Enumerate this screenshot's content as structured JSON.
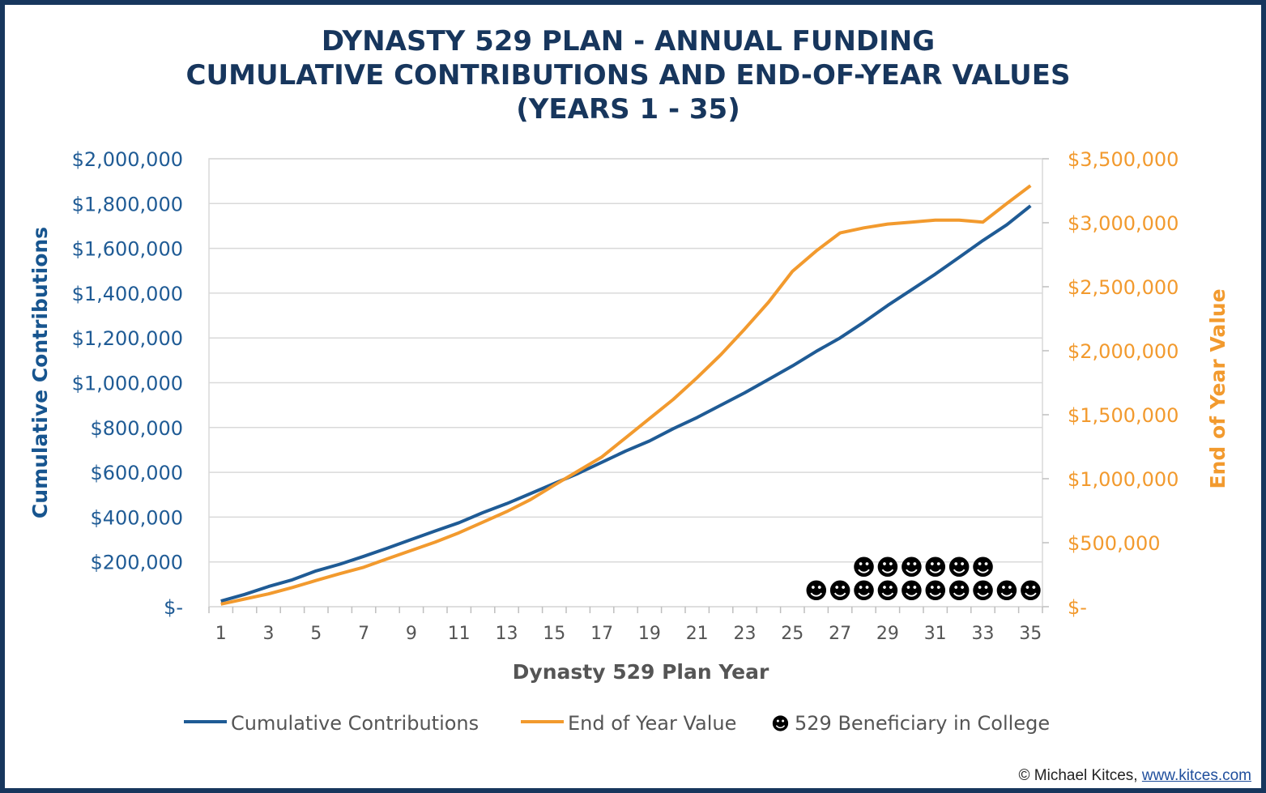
{
  "chart_data": {
    "type": "line",
    "title_lines": [
      "DYNASTY 529 PLAN - ANNUAL FUNDING",
      "CUMULATIVE CONTRIBUTIONS AND END-OF-YEAR VALUES",
      "(YEARS 1 - 35)"
    ],
    "xlabel": "Dynasty 529 Plan Year",
    "ylabel_left": "Cumulative Contributions",
    "ylabel_right": "End of Year Value",
    "x": [
      1,
      2,
      3,
      4,
      5,
      6,
      7,
      8,
      9,
      10,
      11,
      12,
      13,
      14,
      15,
      16,
      17,
      18,
      19,
      20,
      21,
      22,
      23,
      24,
      25,
      26,
      27,
      28,
      29,
      30,
      31,
      32,
      33,
      34,
      35
    ],
    "x_tick_labels": [
      "1",
      "3",
      "5",
      "7",
      "9",
      "11",
      "13",
      "15",
      "17",
      "19",
      "21",
      "23",
      "25",
      "27",
      "29",
      "31",
      "33",
      "35"
    ],
    "y_left_ticks": [
      "$-",
      "$200,000",
      "$400,000",
      "$600,000",
      "$800,000",
      "$1,000,000",
      "$1,200,000",
      "$1,400,000",
      "$1,600,000",
      "$1,800,000",
      "$2,000,000"
    ],
    "y_right_ticks": [
      "$-",
      "$500,000",
      "$1,000,000",
      "$1,500,000",
      "$2,000,000",
      "$2,500,000",
      "$3,000,000",
      "$3,500,000"
    ],
    "ylim_left": [
      0,
      2000000
    ],
    "ylim_right": [
      0,
      3500000
    ],
    "grid": true,
    "legend_position": "bottom",
    "series": [
      {
        "name": "Cumulative Contributions",
        "axis": "left",
        "color": "#1f5b95",
        "values": [
          25000,
          55000,
          90000,
          120000,
          160000,
          190000,
          225000,
          262000,
          300000,
          338000,
          375000,
          420000,
          460000,
          505000,
          550000,
          595000,
          645000,
          695000,
          740000,
          795000,
          845000,
          900000,
          955000,
          1015000,
          1075000,
          1140000,
          1200000,
          1270000,
          1345000,
          1415000,
          1485000,
          1560000,
          1635000,
          1705000,
          1790000
        ]
      },
      {
        "name": "End of Year Value",
        "axis": "right",
        "color": "#f29a2e",
        "values": [
          20000,
          60000,
          100000,
          150000,
          205000,
          258000,
          308000,
          375000,
          440000,
          505000,
          578000,
          660000,
          743000,
          837000,
          950000,
          1060000,
          1170000,
          1320000,
          1470000,
          1620000,
          1790000,
          1970000,
          2170000,
          2380000,
          2620000,
          2780000,
          2920000,
          2960000,
          2990000,
          3005000,
          3020000,
          3020000,
          3005000,
          3150000,
          3290000
        ]
      },
      {
        "name": "529 Beneficiary in College",
        "type": "marker",
        "symbol": "☻",
        "color": "#000000",
        "x": [
          26,
          27,
          28,
          29,
          30,
          31,
          32,
          33,
          34,
          35,
          28,
          29,
          30,
          31,
          32,
          33
        ],
        "level": [
          1,
          1,
          1,
          1,
          1,
          1,
          1,
          1,
          1,
          1,
          2,
          2,
          2,
          2,
          2,
          2
        ]
      }
    ]
  },
  "credit": {
    "prefix": "© Michael Kitces, ",
    "link": "www.kitces.com"
  }
}
